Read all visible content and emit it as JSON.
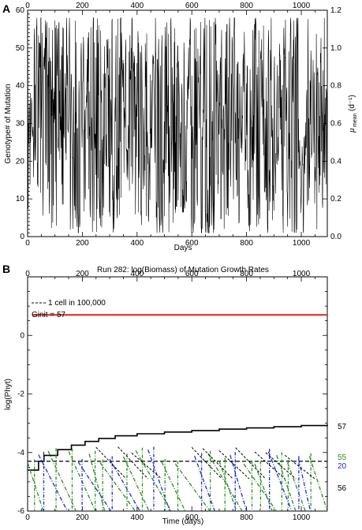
{
  "panels": {
    "a_letter": "A",
    "b_letter": "B"
  },
  "chart_data": [
    {
      "type": "line",
      "panel": "A",
      "xlabel": "Days",
      "ylabel": "Genotype# of Mutation",
      "y2label_main": "μ",
      "y2label_sub": "mean",
      "y2label_unit": "(d⁻¹)",
      "xlim": [
        0,
        1095
      ],
      "ylim": [
        0,
        60
      ],
      "y2lim": [
        0,
        1.2
      ],
      "xticks": [
        0,
        200,
        400,
        600,
        800,
        1000
      ],
      "yticks": [
        0,
        10,
        20,
        30,
        40,
        50,
        60
      ],
      "y2ticks": [
        0.0,
        0.2,
        0.4,
        0.6,
        0.8,
        1.0,
        1.2
      ],
      "series": [
        {
          "color": "#000000",
          "description": "daily genotype number, rapidly oscillating between ~1 and ~58",
          "range": [
            1,
            58
          ]
        }
      ]
    },
    {
      "type": "line",
      "panel": "B",
      "title": "Run 282: log(Biomass) of Mutation Growth Rates",
      "xlabel": "Time (days)",
      "ylabel": "log(Phyt)",
      "xlim": [
        0,
        1095
      ],
      "ylim": [
        -6,
        2
      ],
      "xticks": [
        0,
        200,
        400,
        600,
        800,
        1000
      ],
      "yticks": [
        -6,
        -4,
        -2,
        0
      ],
      "legend_dash": "1 cell in 100,000",
      "legend_ginit": "Ginit = 57",
      "reference_lines": [
        {
          "name": "Ginit",
          "y": 0.7,
          "color": "#e02020"
        },
        {
          "name": "1 cell in 100,000",
          "y": -4.3,
          "color": "#000000",
          "style": "dashed"
        }
      ],
      "series": [
        {
          "name": "57",
          "color": "#000000",
          "x": [
            0,
            40,
            60,
            110,
            160,
            210,
            260,
            320,
            400,
            500,
            600,
            700,
            800,
            900,
            1000,
            1095
          ],
          "y": [
            -4.6,
            -4.3,
            -4.1,
            -3.9,
            -3.75,
            -3.62,
            -3.52,
            -3.43,
            -3.36,
            -3.3,
            -3.25,
            -3.2,
            -3.16,
            -3.12,
            -3.08,
            -3.05
          ]
        },
        {
          "name": "55",
          "color": "#2e8b22"
        },
        {
          "name": "20",
          "color": "#1a2bd6"
        },
        {
          "name": "56",
          "color": "#000000"
        }
      ]
    }
  ]
}
